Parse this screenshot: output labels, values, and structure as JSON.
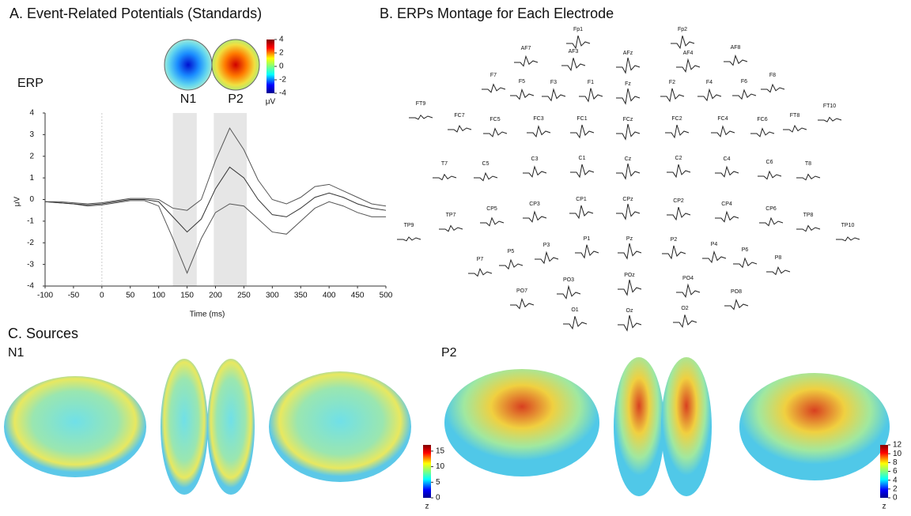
{
  "panel_a": {
    "title": "A. Event-Related Potentials (Standards)",
    "topomaps": [
      "N1",
      "P2"
    ],
    "colorbar": {
      "lim": [
        -4,
        4
      ],
      "ticks": [
        4,
        2,
        0,
        -2,
        -4
      ],
      "unit": "μV"
    }
  },
  "chart_data": {
    "type": "line",
    "title": "ERP",
    "x_label": "Time (ms)",
    "y_label": "μV",
    "x": [
      -100,
      -75,
      -50,
      -25,
      0,
      25,
      50,
      75,
      100,
      125,
      150,
      175,
      200,
      225,
      250,
      275,
      300,
      325,
      350,
      375,
      400,
      425,
      450,
      475,
      500
    ],
    "series": [
      {
        "color": "#555555",
        "values": [
          -0.1,
          -0.15,
          -0.2,
          -0.3,
          -0.25,
          -0.15,
          -0.05,
          -0.05,
          -0.3,
          -1.8,
          -3.4,
          -1.8,
          -0.6,
          -0.2,
          -0.3,
          -0.9,
          -1.5,
          -1.6,
          -1.0,
          -0.4,
          -0.1,
          -0.3,
          -0.6,
          -0.8,
          -0.8
        ]
      },
      {
        "color": "#333333",
        "values": [
          -0.1,
          -0.15,
          -0.2,
          -0.25,
          -0.2,
          -0.1,
          0.0,
          0.0,
          -0.1,
          -0.8,
          -1.5,
          -0.9,
          0.5,
          1.5,
          1.0,
          0.0,
          -0.7,
          -0.8,
          -0.4,
          0.1,
          0.3,
          0.1,
          -0.2,
          -0.4,
          -0.5
        ]
      },
      {
        "color": "#555555",
        "values": [
          -0.1,
          -0.1,
          -0.15,
          -0.2,
          -0.15,
          -0.05,
          0.05,
          0.05,
          0.0,
          -0.4,
          -0.5,
          0.0,
          1.8,
          3.3,
          2.3,
          0.9,
          0.0,
          -0.2,
          0.1,
          0.6,
          0.7,
          0.4,
          0.1,
          -0.2,
          -0.3
        ]
      }
    ],
    "shaded_windows": [
      [
        125,
        167
      ],
      [
        197,
        255
      ]
    ],
    "xlim": [
      -100,
      500
    ],
    "xticks": [
      -100,
      -50,
      0,
      50,
      100,
      150,
      200,
      250,
      300,
      350,
      400,
      450,
      500
    ],
    "ylim": [
      -4,
      4
    ],
    "yticks": [
      -4,
      -3,
      -2,
      -1,
      0,
      1,
      2,
      3,
      4
    ]
  },
  "panel_b": {
    "title": "B. ERPs Montage for Each Electrode",
    "electrodes": [
      "Fp1",
      "Fp2",
      "AF7",
      "AF3",
      "AFz",
      "AF4",
      "AF8",
      "F7",
      "F5",
      "F3",
      "F1",
      "Fz",
      "F2",
      "F4",
      "F6",
      "F8",
      "FT9",
      "FC7",
      "FC5",
      "FC3",
      "FC1",
      "FCz",
      "FC2",
      "FC4",
      "FC6",
      "FT8",
      "FT10",
      "T7",
      "C5",
      "C3",
      "C1",
      "Cz",
      "C2",
      "C4",
      "C6",
      "T8",
      "TP9",
      "TP7",
      "CP5",
      "CP3",
      "CP1",
      "CPz",
      "CP2",
      "CP4",
      "CP6",
      "TP8",
      "TP10",
      "P7",
      "P5",
      "P3",
      "P1",
      "Pz",
      "P2",
      "P4",
      "P6",
      "P8",
      "PO7",
      "PO3",
      "POz",
      "PO4",
      "PO8",
      "O1",
      "Oz",
      "O2"
    ]
  },
  "panel_c": {
    "title": "C. Sources",
    "maps": [
      {
        "label": "N1",
        "colorbar": {
          "lim": [
            0,
            17
          ],
          "ticks": [
            15,
            10,
            5,
            0
          ],
          "unit": "z"
        }
      },
      {
        "label": "P2",
        "colorbar": {
          "lim": [
            0,
            12
          ],
          "ticks": [
            12,
            10,
            8,
            6,
            4,
            2,
            0
          ],
          "unit": "z"
        }
      }
    ]
  }
}
